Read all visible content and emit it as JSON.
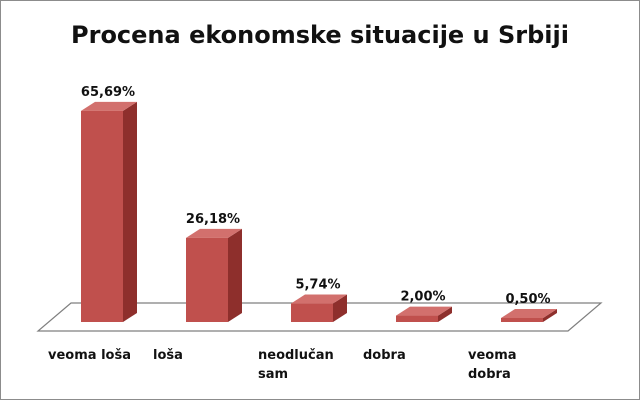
{
  "chart_data": {
    "type": "bar",
    "title": "Procena ekonomske situacije u Srbiji",
    "categories": [
      "veoma loša",
      "loša",
      "neodlučan sam",
      "dobra",
      "veoma dobra"
    ],
    "category_lines": [
      [
        "veoma loša"
      ],
      [
        "loša"
      ],
      [
        "neodlučan",
        "sam"
      ],
      [
        "dobra"
      ],
      [
        "veoma",
        "dobra"
      ]
    ],
    "values": [
      65.69,
      26.18,
      5.74,
      2.0,
      0.5
    ],
    "data_labels": [
      "65,69%",
      "26,18%",
      "5,74%",
      "2,00%",
      "0,50%"
    ],
    "ylim": [
      0,
      70
    ],
    "grid": false,
    "legend": "none",
    "style": "3d-column",
    "colors": {
      "bar_front": "#c0504d",
      "bar_side": "#8e2f2c",
      "bar_top": "#d2706d",
      "floor": "#ffffff",
      "floor_stroke": "#7f7f7f"
    }
  }
}
